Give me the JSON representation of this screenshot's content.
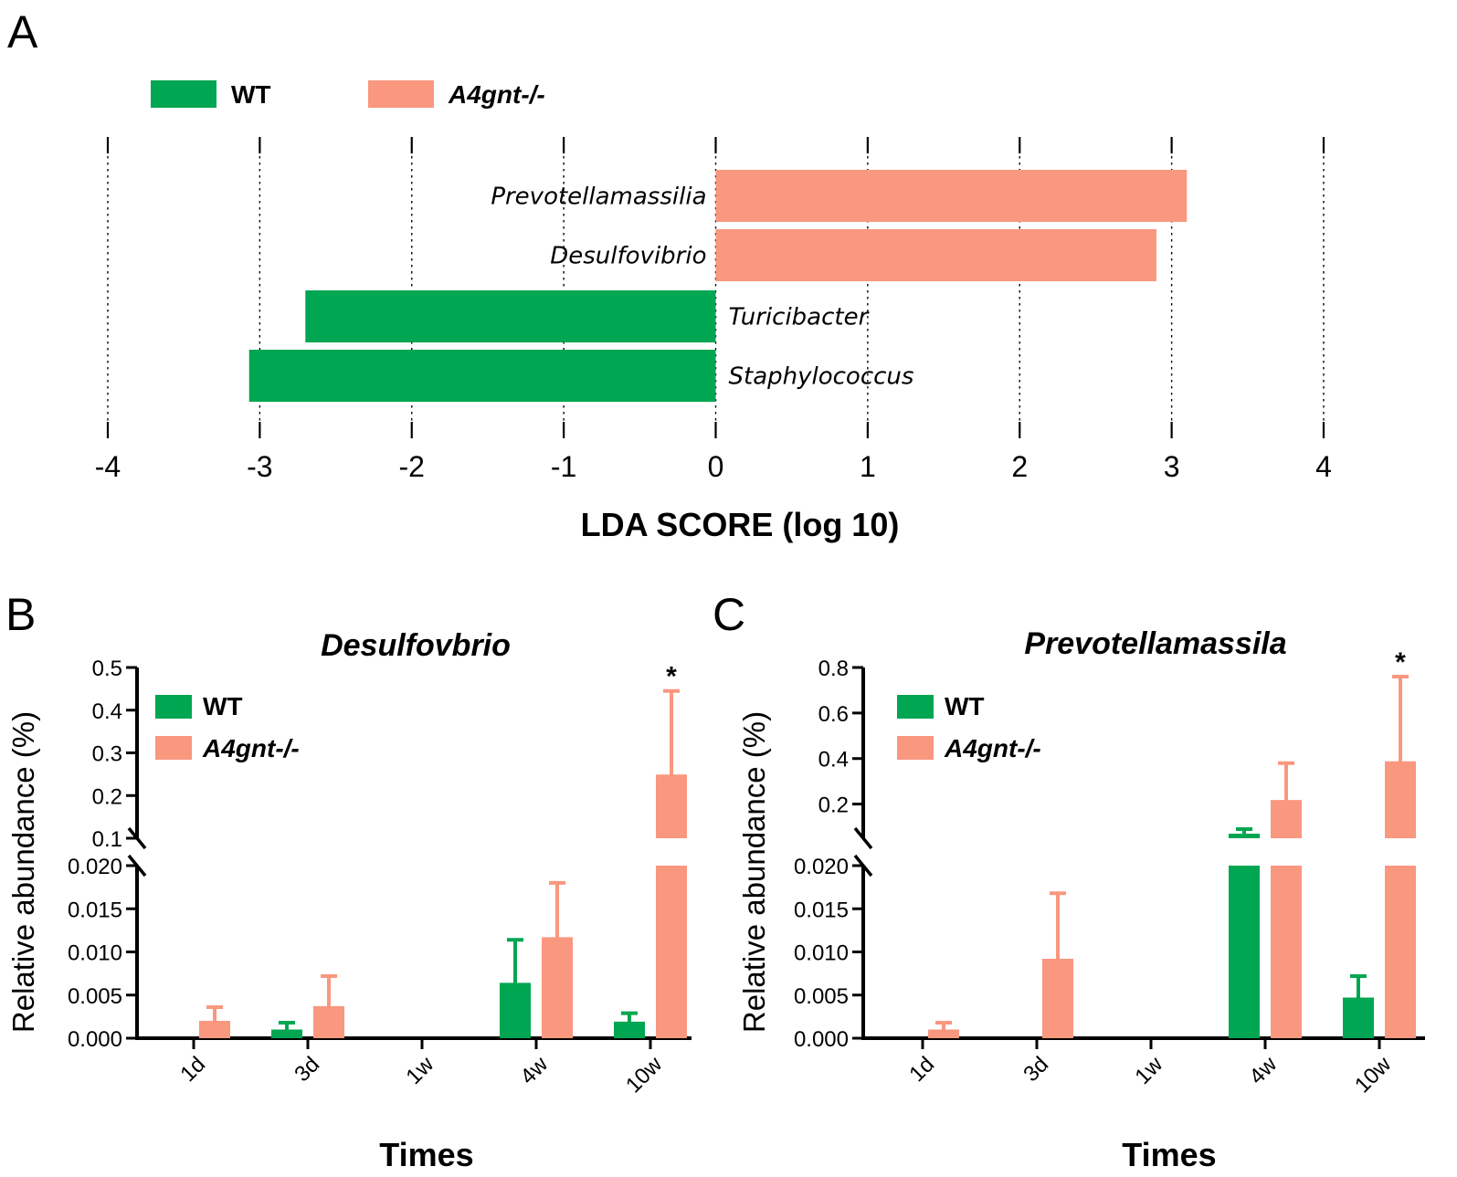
{
  "figure": {
    "panel_labels": [
      "A",
      "B",
      "C"
    ]
  },
  "legend": {
    "wt_label": "WT",
    "ko_label": "A4gnt-/-"
  },
  "colors": {
    "wt": "#00a651",
    "ko": "#f9977f",
    "axis": "#000000"
  },
  "chart_data": [
    {
      "panel": "A",
      "type": "bar",
      "orientation": "horizontal",
      "xlabel": "LDA SCORE (log 10)",
      "xlim": [
        -4,
        4
      ],
      "xticks": [
        "-4",
        "-3",
        "-2",
        "-1",
        "0",
        "1",
        "2",
        "3",
        "4"
      ],
      "grid": "vertical dotted",
      "legend": [
        "WT",
        "A4gnt-/-"
      ],
      "legend_position": "top-left",
      "bars": [
        {
          "taxon": "Prevotellamassilia",
          "group": "A4gnt-/-",
          "value": 3.1
        },
        {
          "taxon": "Desulfovibrio",
          "group": "A4gnt-/-",
          "value": 2.9
        },
        {
          "taxon": "Turicibacter",
          "group": "WT",
          "value": -2.7
        },
        {
          "taxon": "Staphylococcus",
          "group": "WT",
          "value": -3.07
        }
      ]
    },
    {
      "panel": "B",
      "type": "bar",
      "title": "Desulfovbrio",
      "xlabel": "Times",
      "ylabel": "Relative abundance (%)",
      "categories": [
        "1d",
        "3d",
        "1w",
        "4w",
        "10w"
      ],
      "y_axis_break": {
        "lower_range": [
          0,
          0.02
        ],
        "lower_ticks": [
          "0.000",
          "0.005",
          "0.010",
          "0.015",
          "0.020"
        ],
        "upper_range": [
          0.1,
          0.5
        ],
        "upper_ticks": [
          "0.1",
          "0.2",
          "0.3",
          "0.4",
          "0.5"
        ]
      },
      "legend_position": "top-left",
      "series": [
        {
          "name": "WT",
          "values": [
            0,
            0.0008,
            0,
            0.0062,
            0.0017
          ],
          "errors": [
            0,
            0.001,
            0,
            0.0052,
            0.0012
          ]
        },
        {
          "name": "A4gnt-/-",
          "values": [
            0.0018,
            0.0035,
            0,
            0.0115,
            0.245
          ],
          "errors": [
            0.0018,
            0.0037,
            0,
            0.0065,
            0.2
          ]
        }
      ],
      "annotations": [
        {
          "category": "10w",
          "series": "A4gnt-/-",
          "text": "*"
        }
      ]
    },
    {
      "panel": "C",
      "type": "bar",
      "title": "Prevotellamassila",
      "xlabel": "Times",
      "ylabel": "Relative abundance (%)",
      "categories": [
        "1d",
        "3d",
        "1w",
        "4w",
        "10w"
      ],
      "y_axis_break": {
        "lower_range": [
          0,
          0.02
        ],
        "lower_ticks": [
          "0.000",
          "0.005",
          "0.010",
          "0.015",
          "0.020"
        ],
        "upper_range": [
          0.05,
          0.8
        ],
        "upper_ticks": [
          "0.2",
          "0.4",
          "0.6",
          "0.8"
        ]
      },
      "legend_position": "top-left",
      "series": [
        {
          "name": "WT",
          "values": [
            0,
            0,
            0,
            0.06,
            0.0045
          ],
          "errors": [
            0,
            0,
            0,
            0.03,
            0.0027
          ]
        },
        {
          "name": "A4gnt-/-",
          "values": [
            0.0008,
            0.009,
            0,
            0.21,
            0.38
          ],
          "errors": [
            0.001,
            0.0078,
            0,
            0.17,
            0.38
          ]
        }
      ],
      "annotations": [
        {
          "category": "10w",
          "series": "A4gnt-/-",
          "text": "*"
        }
      ]
    }
  ]
}
